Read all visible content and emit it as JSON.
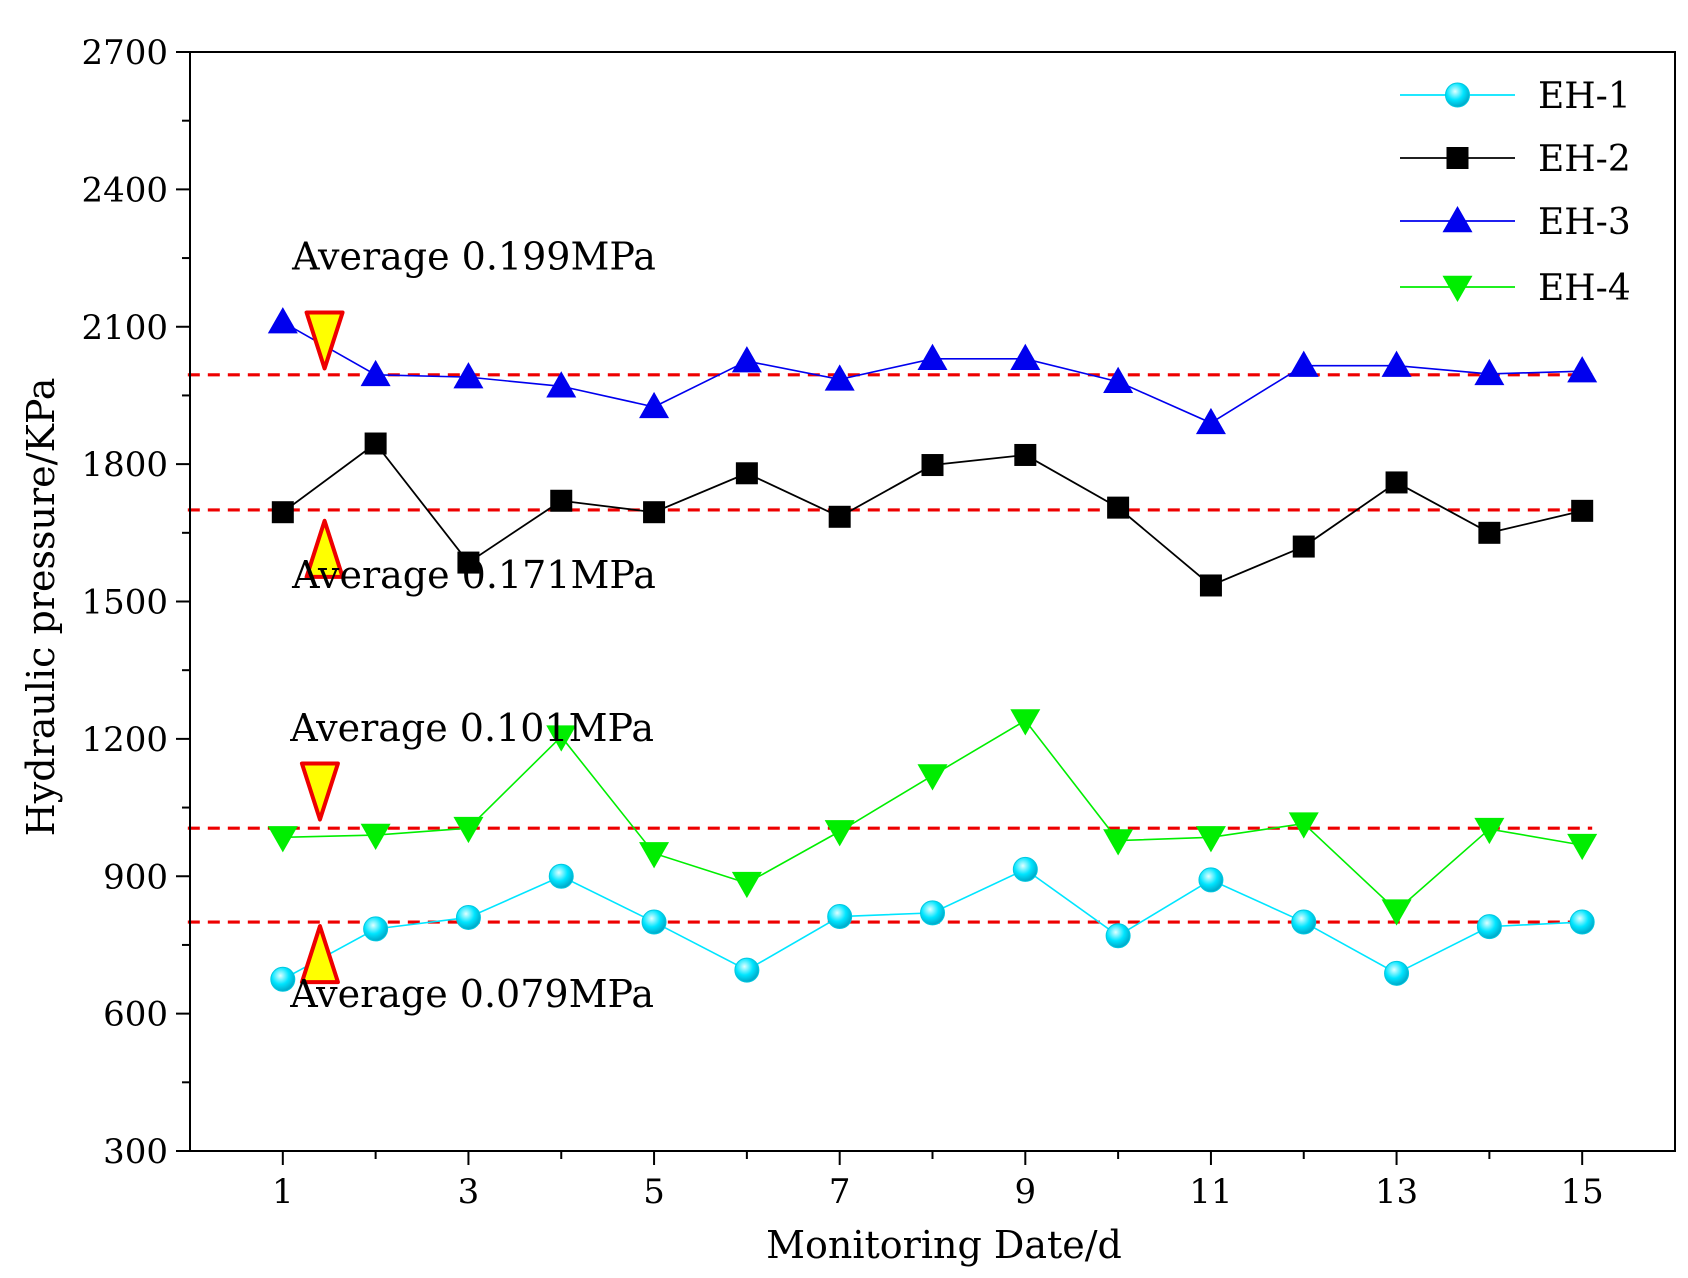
{
  "chart_data": {
    "type": "line",
    "xlabel": "Monitoring Date/d",
    "ylabel": "Hydraulic pressure/KPa",
    "xlim": [
      0,
      16
    ],
    "ylim": [
      300,
      2700
    ],
    "x_ticks": [
      "1",
      "3",
      "5",
      "7",
      "9",
      "11",
      "13",
      "15"
    ],
    "y_ticks": [
      "300",
      "600",
      "900",
      "1200",
      "1500",
      "1800",
      "2100",
      "2400",
      "2700"
    ],
    "grid": false,
    "legend_position": "top-right",
    "x": [
      1,
      2,
      3,
      4,
      5,
      6,
      7,
      8,
      9,
      10,
      11,
      12,
      13,
      14,
      15
    ],
    "series": [
      {
        "name": "EH-1",
        "marker": "circle",
        "color": "#00E5FF",
        "values": [
          675,
          785,
          810,
          900,
          800,
          695,
          812,
          820,
          915,
          770,
          892,
          800,
          688,
          790,
          800
        ]
      },
      {
        "name": "EH-2",
        "marker": "square",
        "color": "#000000",
        "values": [
          1695,
          1845,
          1585,
          1720,
          1695,
          1780,
          1685,
          1798,
          1820,
          1705,
          1535,
          1620,
          1760,
          1650,
          1698
        ]
      },
      {
        "name": "EH-3",
        "marker": "triangle-up",
        "color": "#0000EE",
        "values": [
          2110,
          1995,
          1990,
          1970,
          1925,
          2025,
          1985,
          2030,
          2030,
          1980,
          1890,
          2015,
          2015,
          1997,
          2003
        ]
      },
      {
        "name": "EH-4",
        "marker": "triangle-down",
        "color": "#00EE00",
        "values": [
          985,
          990,
          1005,
          1205,
          950,
          885,
          998,
          1120,
          1240,
          978,
          985,
          1015,
          825,
          1003,
          968
        ]
      }
    ],
    "reference_lines": [
      {
        "y": 1995,
        "color": "#EE0000"
      },
      {
        "y": 1700,
        "color": "#EE0000"
      },
      {
        "y": 1005,
        "color": "#EE0000"
      },
      {
        "y": 800,
        "color": "#EE0000"
      }
    ],
    "annotations": [
      {
        "text": "Average 0.199MPa",
        "arrow": "down",
        "arrow_x": 1.45,
        "arrow_y": 2070,
        "label_x": 1.1,
        "label_y": 2225
      },
      {
        "text": "Average 0.171MPa",
        "arrow": "up",
        "arrow_x": 1.45,
        "arrow_y": 1615,
        "label_x": 1.1,
        "label_y": 1530
      },
      {
        "text": "Average 0.101MPa",
        "arrow": "down",
        "arrow_x": 1.4,
        "arrow_y": 1085,
        "label_x": 1.08,
        "label_y": 1195
      },
      {
        "text": "Average 0.079MPa",
        "arrow": "up",
        "arrow_x": 1.4,
        "arrow_y": 730,
        "label_x": 1.08,
        "label_y": 615
      }
    ],
    "annotation_arrow_style": {
      "fill": "#FFFF00",
      "stroke": "#EE0000"
    }
  }
}
